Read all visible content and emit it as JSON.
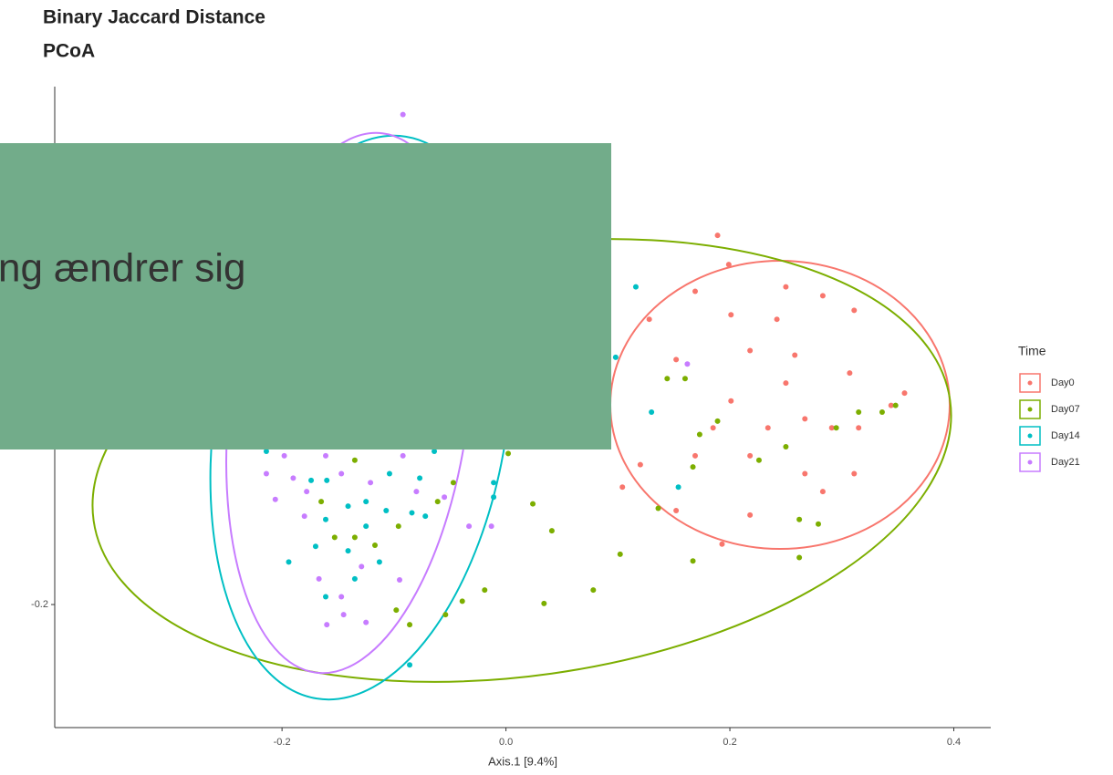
{
  "chart_data": {
    "type": "scatter",
    "title": "Binary Jaccard Distance",
    "subtitle": "PCoA",
    "xlabel": "Axis.1   [9.4%]",
    "legend_title": "Time",
    "legend": "right",
    "xlim": [
      -0.403,
      0.433
    ],
    "ylim": [
      -0.31,
      0.263
    ],
    "xticks": [
      -0.2,
      {
        "value": 0,
        "label": "0.0"
      },
      0.2,
      0.4
    ],
    "yticks": [
      -0.2
    ],
    "series": [
      {
        "name": "Day0",
        "color": "#F8766D",
        "x": [
          0.189,
          0.199,
          0.25,
          0.283,
          0.311,
          0.169,
          0.128,
          0.201,
          0.218,
          0.242,
          0.258,
          0.307,
          0.356,
          0.344,
          0.315,
          0.291,
          0.267,
          0.234,
          0.201,
          0.185,
          0.169,
          0.218,
          0.267,
          0.283,
          0.311,
          0.25,
          0.152,
          0.12,
          0.104,
          0.152,
          0.218,
          0.193
        ],
        "y": [
          0.13,
          0.104,
          0.084,
          0.076,
          0.063,
          0.08,
          0.055,
          0.059,
          0.027,
          0.055,
          0.023,
          0.007,
          -0.011,
          -0.022,
          -0.042,
          -0.042,
          -0.034,
          -0.042,
          -0.018,
          -0.042,
          -0.067,
          -0.067,
          -0.083,
          -0.099,
          -0.083,
          -0.002,
          0.019,
          -0.075,
          -0.095,
          -0.116,
          -0.12,
          -0.146
        ]
      },
      {
        "name": "Day07",
        "color": "#7CAE00",
        "x": [
          0.144,
          0.16,
          0.173,
          0.189,
          0.226,
          0.25,
          0.295,
          0.315,
          0.336,
          0.348,
          0.167,
          0.136,
          0.262,
          0.279,
          0.262,
          0.167,
          0.102,
          0.078,
          0.041,
          0.024,
          0.034,
          -0.019,
          -0.039,
          -0.054,
          -0.086,
          -0.098,
          0.002,
          -0.047,
          -0.061,
          -0.096,
          -0.117,
          -0.135,
          -0.153,
          -0.165,
          -0.135
        ],
        "y": [
          0.002,
          0.002,
          -0.048,
          -0.036,
          -0.071,
          -0.059,
          -0.042,
          -0.028,
          -0.028,
          -0.022,
          -0.077,
          -0.114,
          -0.124,
          -0.128,
          -0.158,
          -0.161,
          -0.155,
          -0.187,
          -0.134,
          -0.11,
          -0.199,
          -0.187,
          -0.197,
          -0.209,
          -0.218,
          -0.205,
          -0.065,
          -0.091,
          -0.108,
          -0.13,
          -0.147,
          -0.14,
          -0.14,
          -0.108,
          -0.071
        ]
      },
      {
        "name": "Day14",
        "color": "#00BFC4",
        "x": [
          0.116,
          0.098,
          0.13,
          0.154,
          -0.011,
          -0.011,
          -0.064,
          -0.077,
          -0.084,
          -0.072,
          -0.107,
          -0.125,
          -0.141,
          -0.16,
          -0.174,
          -0.194,
          -0.17,
          -0.161,
          -0.135,
          -0.125,
          -0.141,
          -0.113,
          -0.086,
          -0.214,
          -0.161,
          -0.104
        ],
        "y": [
          0.084,
          0.021,
          -0.028,
          -0.095,
          -0.091,
          -0.104,
          -0.063,
          -0.087,
          -0.118,
          -0.121,
          -0.116,
          -0.108,
          -0.112,
          -0.089,
          -0.089,
          -0.162,
          -0.148,
          -0.193,
          -0.177,
          -0.13,
          -0.152,
          -0.162,
          -0.254,
          -0.063,
          -0.124,
          -0.083
        ]
      },
      {
        "name": "Day21",
        "color": "#C77CFF",
        "x": [
          -0.092,
          0.162,
          -0.214,
          -0.206,
          -0.19,
          -0.178,
          -0.161,
          -0.147,
          -0.121,
          -0.092,
          -0.08,
          -0.055,
          -0.033,
          -0.013,
          -0.167,
          -0.147,
          -0.16,
          -0.125,
          -0.095,
          -0.129,
          -0.18,
          -0.198,
          -0.145
        ],
        "y": [
          0.238,
          0.015,
          -0.083,
          -0.106,
          -0.087,
          -0.099,
          -0.067,
          -0.083,
          -0.091,
          -0.067,
          -0.099,
          -0.104,
          -0.13,
          -0.13,
          -0.177,
          -0.193,
          -0.218,
          -0.216,
          -0.178,
          -0.166,
          -0.121,
          -0.067,
          -0.209
        ]
      }
    ]
  },
  "overlay": {
    "text": "ng ændrer sig"
  }
}
